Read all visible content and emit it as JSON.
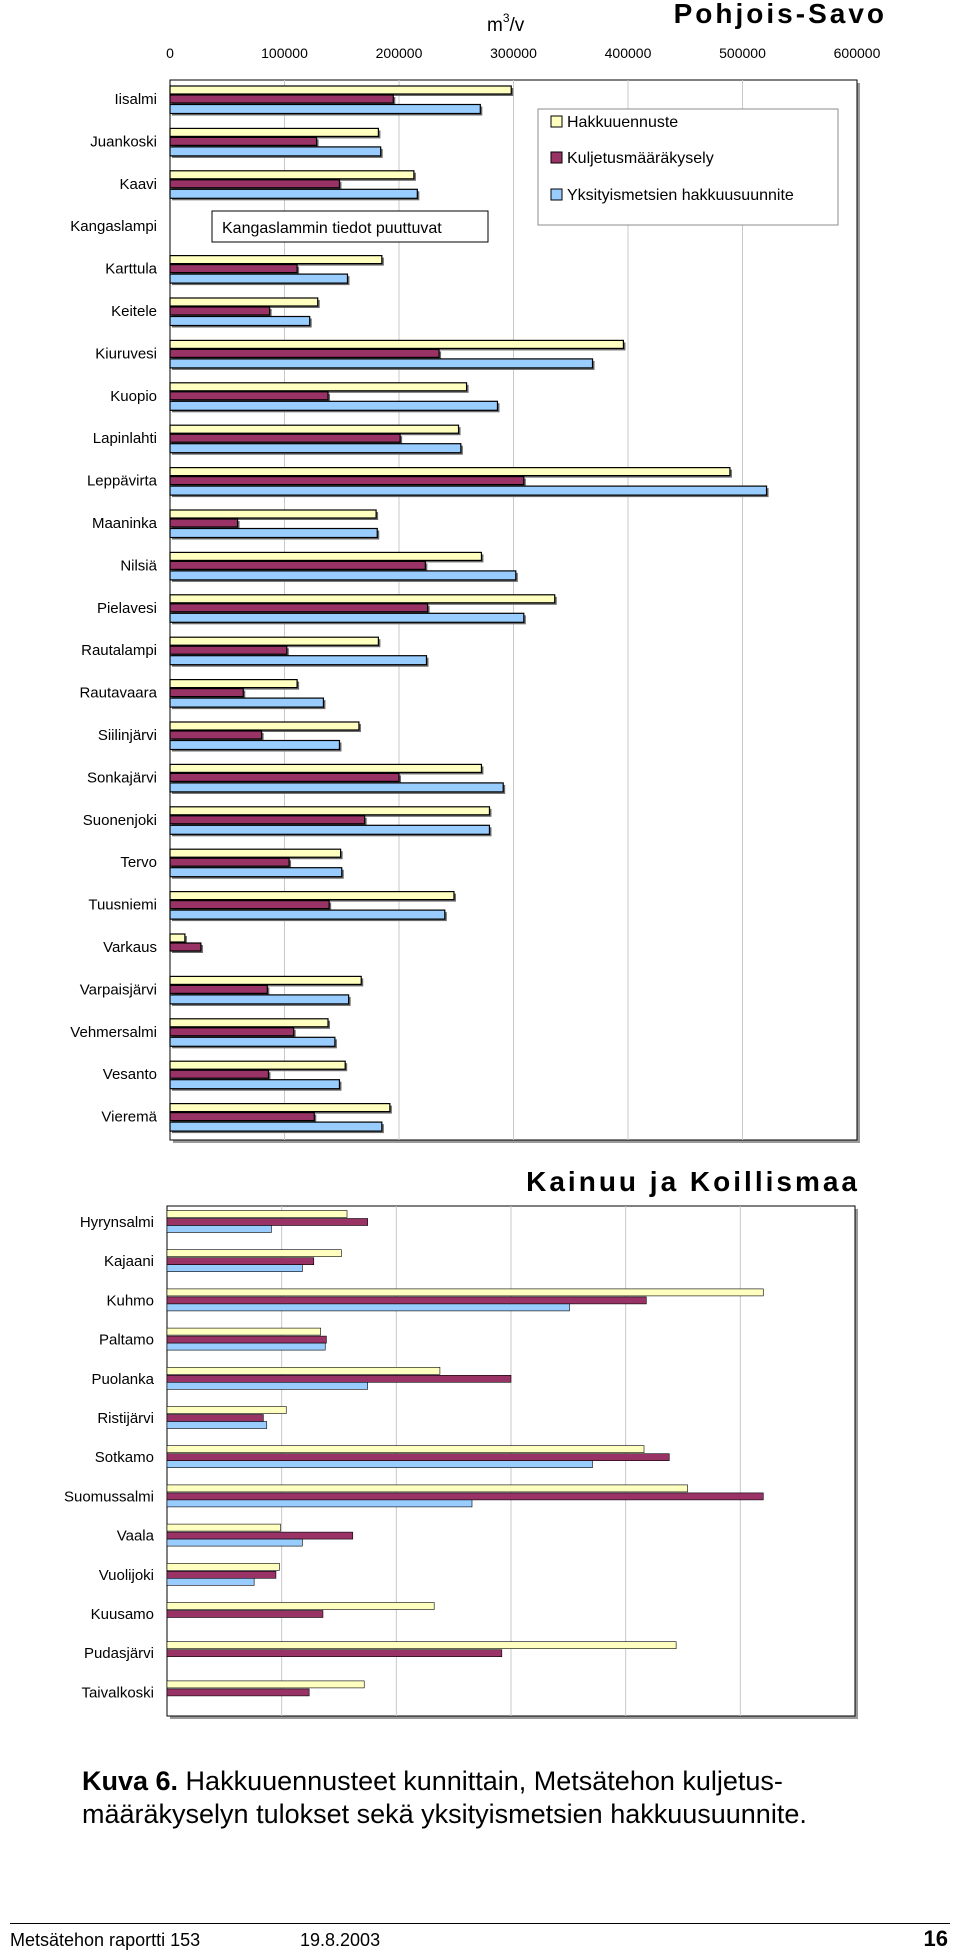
{
  "unit_label": "m",
  "unit_sup": "3",
  "unit_suffix": "/v",
  "chart_data": [
    {
      "type": "bar",
      "orientation": "horizontal",
      "title": "Pohjois-Savo",
      "xlim": [
        0,
        600000
      ],
      "xticks": [
        0,
        100000,
        200000,
        300000,
        400000,
        500000,
        600000
      ],
      "tick_labels": [
        "0",
        "100000",
        "200000",
        "300000",
        "400000",
        "500000",
        "600000"
      ],
      "grid": true,
      "legend_position": "top-right",
      "colors": [
        "#ffffc0",
        "#993366",
        "#99ccff"
      ],
      "annotation": "Kangaslammin tiedot puuttuvat",
      "categories": [
        "Iisalmi",
        "Juankoski",
        "Kaavi",
        "Kangaslampi",
        "Karttula",
        "Keitele",
        "Kiuruvesi",
        "Kuopio",
        "Lapinlahti",
        "Leppävirta",
        "Maaninka",
        "Nilsiä",
        "Pielavesi",
        "Rautalampi",
        "Rautavaara",
        "Siilinjärvi",
        "Sonkajärvi",
        "Suonenjoki",
        "Tervo",
        "Tuusniemi",
        "Varkaus",
        "Varpaisjärvi",
        "Vehmersalmi",
        "Vesanto",
        "Vieremä"
      ],
      "series": [
        {
          "name": "Hakkuuennuste",
          "values": [
            298000,
            182000,
            213000,
            null,
            185000,
            129000,
            396000,
            259000,
            252000,
            489000,
            180000,
            272000,
            336000,
            182000,
            111000,
            165000,
            272000,
            279000,
            149000,
            248000,
            13000,
            167000,
            138000,
            153000,
            192000
          ]
        },
        {
          "name": "Kuljetusmääräkysely",
          "values": [
            195000,
            128000,
            148000,
            null,
            111000,
            87000,
            235000,
            138000,
            201000,
            309000,
            59000,
            223000,
            225000,
            102000,
            64000,
            80000,
            200000,
            170000,
            104000,
            139000,
            27000,
            85000,
            108000,
            86000,
            126000
          ]
        },
        {
          "name": "Yksityismetsien hakkuusuunnite",
          "values": [
            271000,
            184000,
            216000,
            null,
            155000,
            122000,
            369000,
            286000,
            254000,
            521000,
            181000,
            302000,
            309000,
            224000,
            134000,
            148000,
            291000,
            279000,
            150000,
            240000,
            null,
            156000,
            144000,
            148000,
            185000
          ]
        }
      ]
    },
    {
      "type": "bar",
      "orientation": "horizontal",
      "title": "Kainuu ja Koillismaa",
      "xlim": [
        0,
        600000
      ],
      "grid": true,
      "colors": [
        "#ffffc0",
        "#993366",
        "#99ccff"
      ],
      "categories": [
        "Hyrynsalmi",
        "Kajaani",
        "Kuhmo",
        "Paltamo",
        "Puolanka",
        "Ristijärvi",
        "Sotkamo",
        "Suomussalmi",
        "Vaala",
        "Vuolijoki",
        "Kuusamo",
        "Pudasjärvi",
        "Taivalkoski"
      ],
      "series": [
        {
          "name": "Hakkuuennuste",
          "values": [
            157000,
            152000,
            520000,
            134000,
            238000,
            104000,
            416000,
            454000,
            99000,
            98000,
            233000,
            444000,
            172000
          ]
        },
        {
          "name": "Kuljetusmääräkysely",
          "values": [
            175000,
            128000,
            418000,
            139000,
            300000,
            84000,
            438000,
            520000,
            162000,
            95000,
            136000,
            292000,
            124000
          ]
        },
        {
          "name": "Yksityismetsien hakkuusuunnite",
          "values": [
            91000,
            118000,
            351000,
            138000,
            175000,
            87000,
            371000,
            266000,
            118000,
            76000,
            null,
            null,
            null
          ]
        }
      ]
    }
  ],
  "caption": {
    "label": "Kuva 6.",
    "text": " Hakkuuennusteet kunnittain, Metsätehon kuljetus-määräkyselyn tulokset sekä yksityismetsien hakkuusuunnite."
  },
  "footer": {
    "report": "Metsätehon raportti 153",
    "date": "19.8.2003",
    "page": "16"
  }
}
